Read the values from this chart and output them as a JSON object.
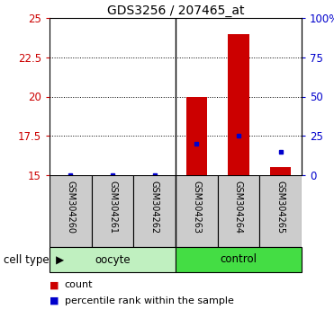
{
  "title": "GDS3256 / 207465_at",
  "samples": [
    "GSM304260",
    "GSM304261",
    "GSM304262",
    "GSM304263",
    "GSM304264",
    "GSM304265"
  ],
  "count_values": [
    15.0,
    15.0,
    15.0,
    20.0,
    24.0,
    15.5
  ],
  "percentile_values": [
    15.0,
    15.0,
    15.0,
    17.0,
    17.5,
    16.5
  ],
  "ylim": [
    15,
    25
  ],
  "yticks_left": [
    15,
    17.5,
    20,
    22.5,
    25
  ],
  "ytick_labels_left": [
    "15",
    "17.5",
    "20",
    "22.5",
    "25"
  ],
  "right_tick_positions": [
    15,
    17.5,
    20,
    22.5,
    25
  ],
  "right_tick_labels": [
    "0",
    "25",
    "50",
    "75",
    "100%"
  ],
  "bar_color": "#CC0000",
  "marker_color": "#0000CC",
  "tick_color_left": "#CC0000",
  "tick_color_right": "#0000CC",
  "bar_bottom": 15.0,
  "bar_width": 0.5,
  "oocyte_color_light": "#c0f0c0",
  "oocyte_color": "#90ee90",
  "control_color": "#44dd44",
  "label_box_color": "#cccccc",
  "background_color": "#ffffff",
  "n_oocyte": 3,
  "n_control": 3,
  "group_separator": 2.5,
  "legend_count_label": "count",
  "legend_pct_label": "percentile rank within the sample",
  "cell_type_label": "cell type",
  "title_fontsize": 10,
  "tick_fontsize": 8.5,
  "sample_fontsize": 7,
  "group_fontsize": 8.5,
  "legend_fontsize": 8
}
